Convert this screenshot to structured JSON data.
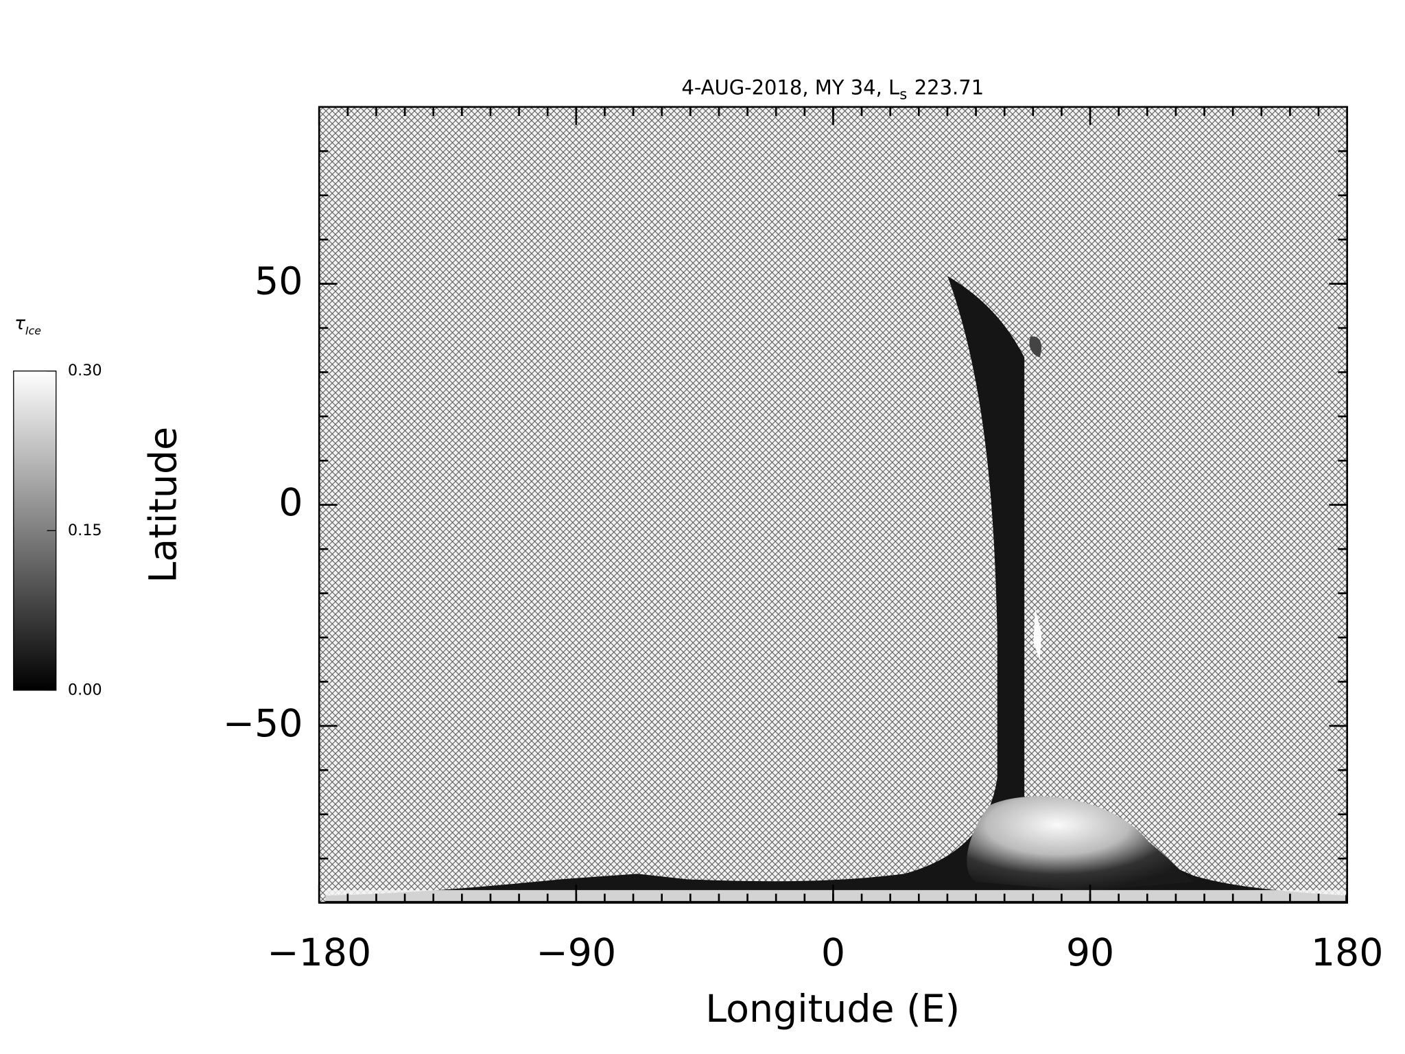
{
  "chart_data": {
    "type": "map",
    "title": "4-AUG-2018, MY 34,  L",
    "title_subscript": "s",
    "title_suffix": "223.71",
    "xlabel": "Longitude (E)",
    "ylabel": "Latitude",
    "xlim": [
      -180,
      180
    ],
    "ylim": [
      -90,
      90
    ],
    "xticks": [
      {
        "value": -180,
        "label": "−180"
      },
      {
        "value": -90,
        "label": "−90"
      },
      0,
      90,
      180
    ],
    "yticks": [
      {
        "value": -50,
        "label": "−50"
      },
      0,
      50
    ],
    "minor_step": 10,
    "colorbar": {
      "label": "τ",
      "label_subscript": "Ice",
      "clim": [
        0,
        0.3
      ],
      "ticks": [
        {
          "value": 0,
          "label": "0.00"
        },
        {
          "value": 0.15,
          "label": "0.15"
        },
        {
          "value": 0.3,
          "label": "0.30"
        }
      ]
    }
  }
}
